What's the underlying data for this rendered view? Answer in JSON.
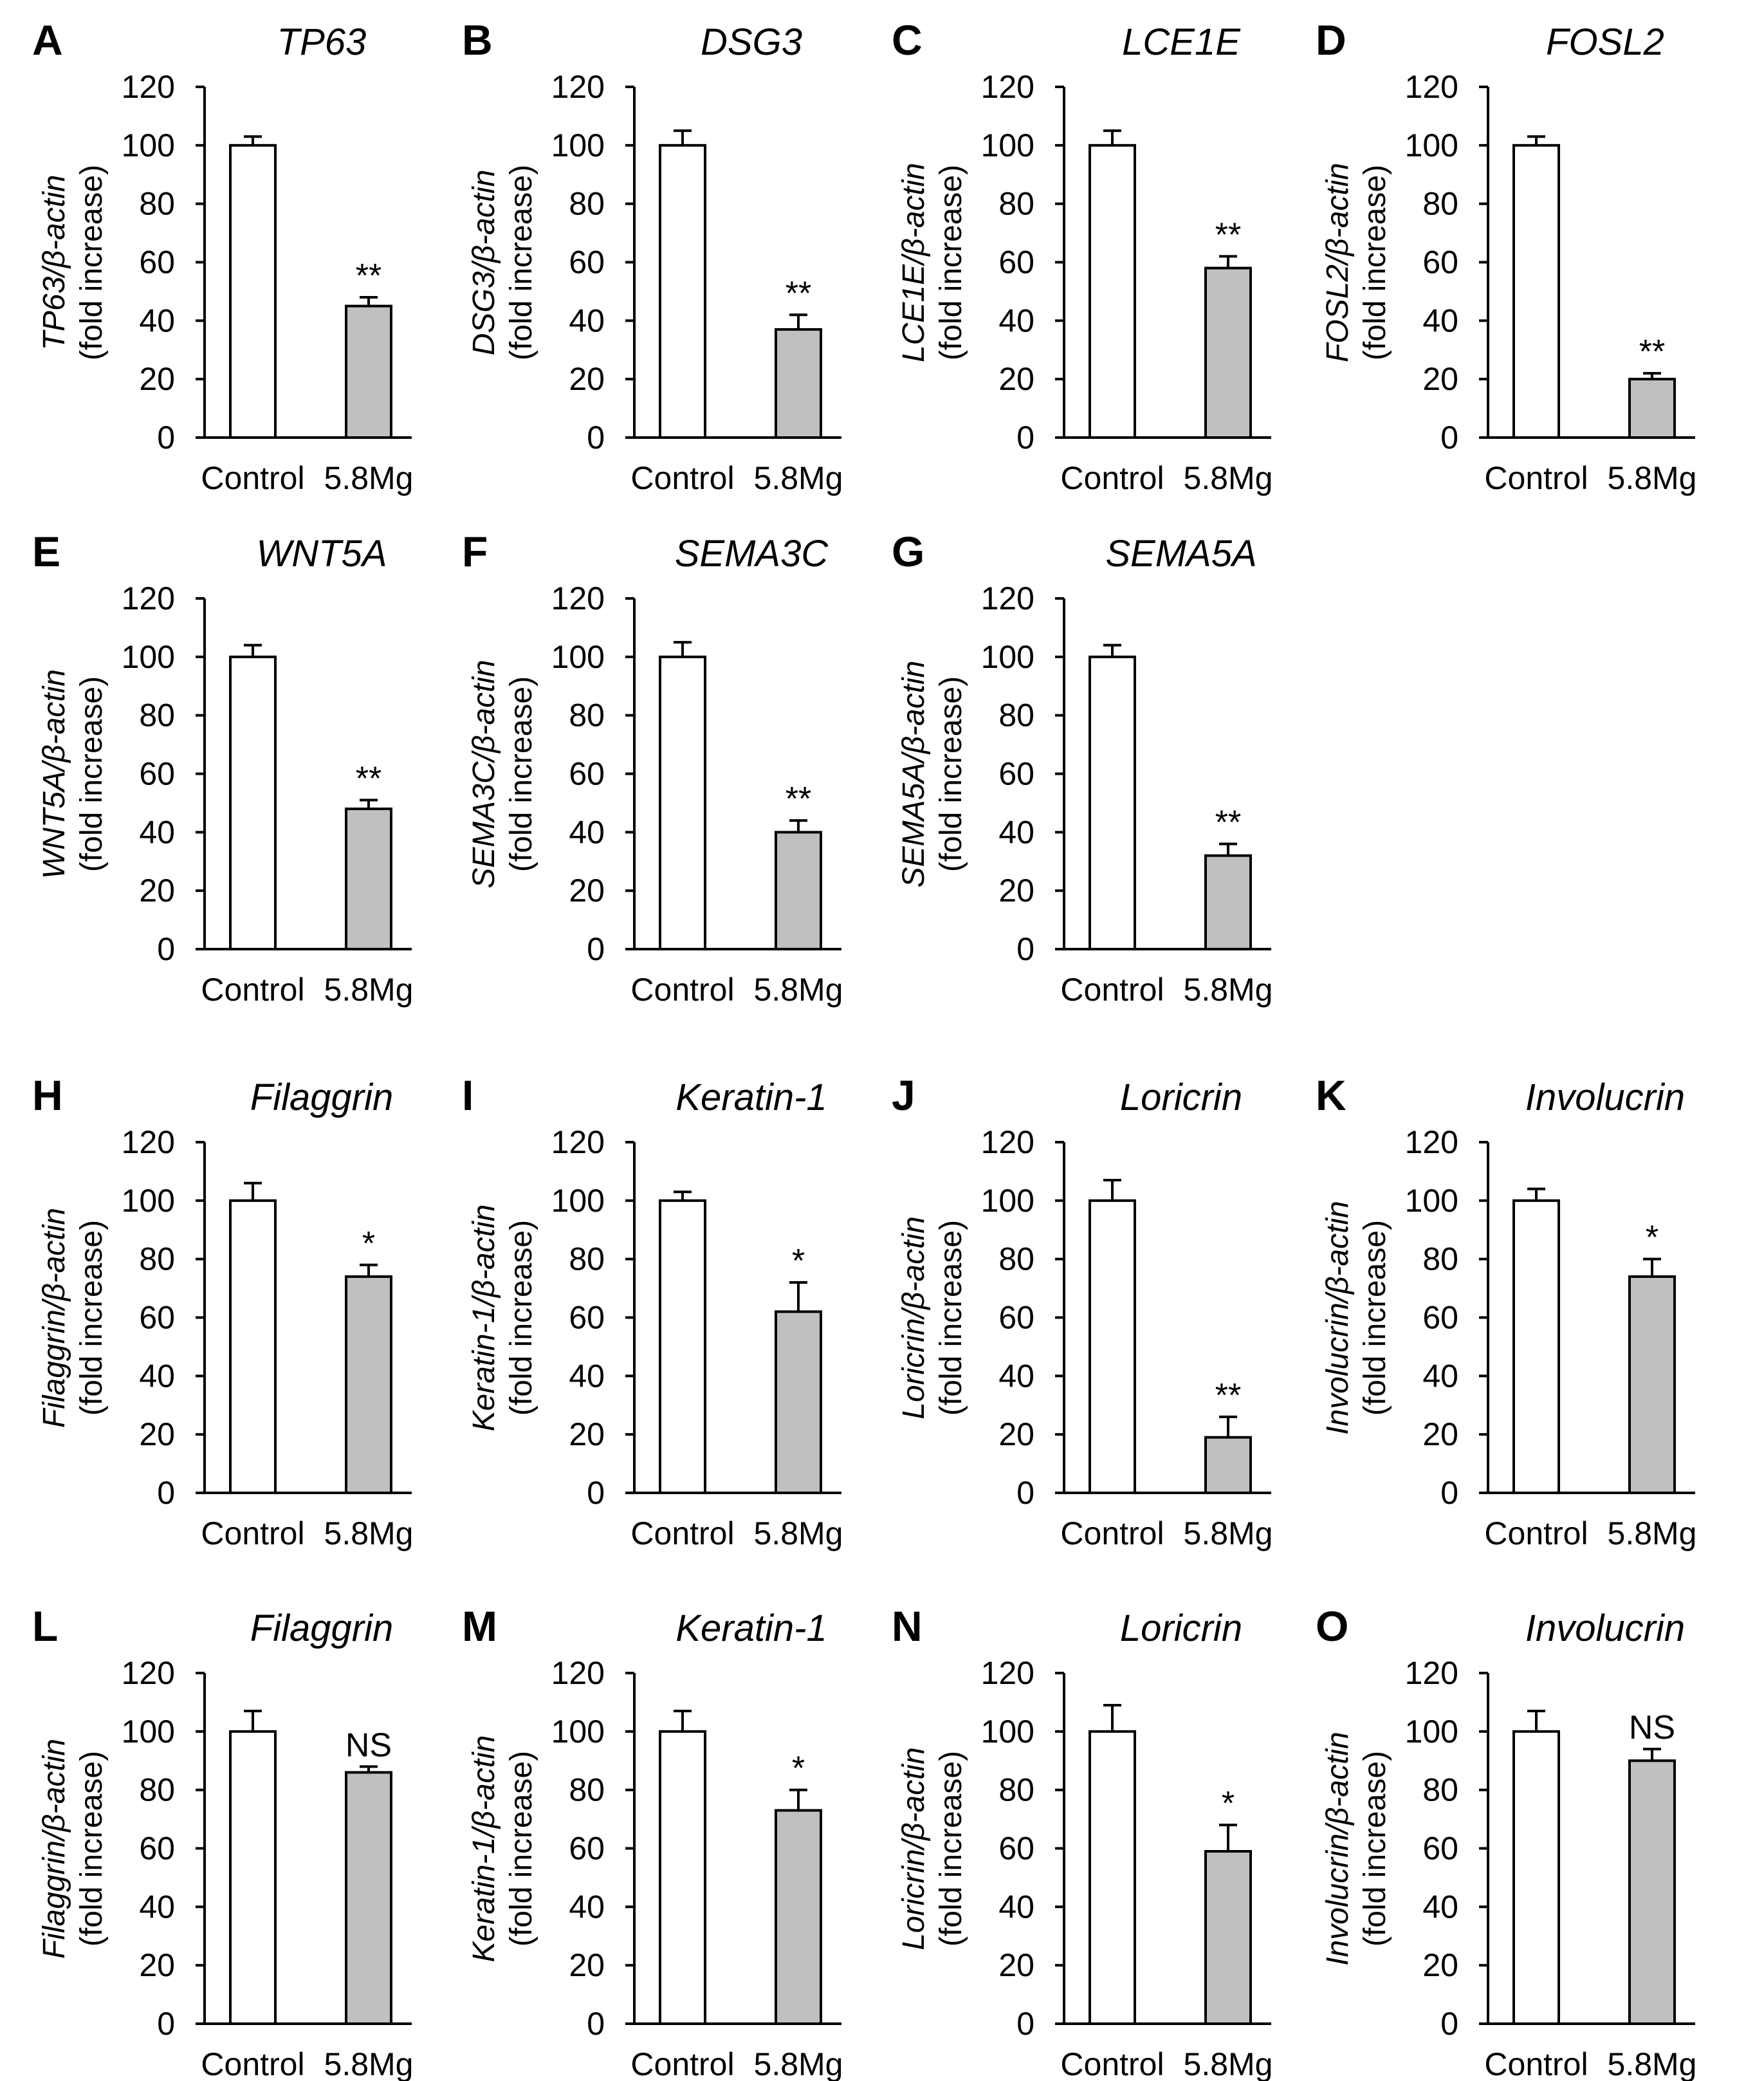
{
  "colors": {
    "control_fill": "#ffffff",
    "treated_fill": "#c0c0c0",
    "stroke": "#000000"
  },
  "chart_data": [
    {
      "panel": "A",
      "type": "bar",
      "title": "TP63",
      "ylabel_gene": "TP63/β-actin",
      "ylabel_unit": "(fold increase)",
      "categories": [
        "Control",
        "5.8Mg"
      ],
      "values": [
        100,
        45
      ],
      "errors": [
        3,
        3
      ],
      "significance": "**",
      "ylim": [
        0,
        120
      ],
      "yticks": [
        "0",
        "20",
        "40",
        "60",
        "80",
        "100",
        "120"
      ]
    },
    {
      "panel": "B",
      "type": "bar",
      "title": "DSG3",
      "ylabel_gene": "DSG3/β-actin",
      "ylabel_unit": "(fold increase)",
      "categories": [
        "Control",
        "5.8Mg"
      ],
      "values": [
        100,
        37
      ],
      "errors": [
        5,
        5
      ],
      "significance": "**",
      "ylim": [
        0,
        120
      ],
      "yticks": [
        "0",
        "20",
        "40",
        "60",
        "80",
        "100",
        "120"
      ]
    },
    {
      "panel": "C",
      "type": "bar",
      "title": "LCE1E",
      "ylabel_gene": "LCE1E/β-actin",
      "ylabel_unit": "(fold increase)",
      "categories": [
        "Control",
        "5.8Mg"
      ],
      "values": [
        100,
        58
      ],
      "errors": [
        5,
        4
      ],
      "significance": "**",
      "ylim": [
        0,
        120
      ],
      "yticks": [
        "0",
        "20",
        "40",
        "60",
        "80",
        "100",
        "120"
      ]
    },
    {
      "panel": "D",
      "type": "bar",
      "title": "FOSL2",
      "ylabel_gene": "FOSL2/β-actin",
      "ylabel_unit": "(fold increase)",
      "categories": [
        "Control",
        "5.8Mg"
      ],
      "values": [
        100,
        20
      ],
      "errors": [
        3,
        2
      ],
      "significance": "**",
      "ylim": [
        0,
        120
      ],
      "yticks": [
        "0",
        "20",
        "40",
        "60",
        "80",
        "100",
        "120"
      ]
    },
    {
      "panel": "E",
      "type": "bar",
      "title": "WNT5A",
      "ylabel_gene": "WNT5A/β-actin",
      "ylabel_unit": "(fold increase)",
      "categories": [
        "Control",
        "5.8Mg"
      ],
      "values": [
        100,
        48
      ],
      "errors": [
        4,
        3
      ],
      "significance": "**",
      "ylim": [
        0,
        120
      ],
      "yticks": [
        "0",
        "20",
        "40",
        "60",
        "80",
        "100",
        "120"
      ]
    },
    {
      "panel": "F",
      "type": "bar",
      "title": "SEMA3C",
      "ylabel_gene": "SEMA3C/β-actin",
      "ylabel_unit": "(fold increase)",
      "categories": [
        "Control",
        "5.8Mg"
      ],
      "values": [
        100,
        40
      ],
      "errors": [
        5,
        4
      ],
      "significance": "**",
      "ylim": [
        0,
        120
      ],
      "yticks": [
        "0",
        "20",
        "40",
        "60",
        "80",
        "100",
        "120"
      ]
    },
    {
      "panel": "G",
      "type": "bar",
      "title": "SEMA5A",
      "ylabel_gene": "SEMA5A/β-actin",
      "ylabel_unit": "(fold increase)",
      "categories": [
        "Control",
        "5.8Mg"
      ],
      "values": [
        100,
        32
      ],
      "errors": [
        4,
        4
      ],
      "significance": "**",
      "ylim": [
        0,
        120
      ],
      "yticks": [
        "0",
        "20",
        "40",
        "60",
        "80",
        "100",
        "120"
      ]
    },
    {
      "panel": "H",
      "type": "bar",
      "title": "Filaggrin",
      "ylabel_gene": "Filaggrin/β-actin",
      "ylabel_unit": "(fold increase)",
      "categories": [
        "Control",
        "5.8Mg"
      ],
      "values": [
        100,
        74
      ],
      "errors": [
        6,
        4
      ],
      "significance": "*",
      "ylim": [
        0,
        120
      ],
      "yticks": [
        "0",
        "20",
        "40",
        "60",
        "80",
        "100",
        "120"
      ]
    },
    {
      "panel": "I",
      "type": "bar",
      "title": "Keratin-1",
      "ylabel_gene": "Keratin-1/β-actin",
      "ylabel_unit": "(fold increase)",
      "categories": [
        "Control",
        "5.8Mg"
      ],
      "values": [
        100,
        62
      ],
      "errors": [
        3,
        10
      ],
      "significance": "*",
      "ylim": [
        0,
        120
      ],
      "yticks": [
        "0",
        "20",
        "40",
        "60",
        "80",
        "100",
        "120"
      ]
    },
    {
      "panel": "J",
      "type": "bar",
      "title": "Loricrin",
      "ylabel_gene": "Loricrin/β-actin",
      "ylabel_unit": "(fold increase)",
      "categories": [
        "Control",
        "5.8Mg"
      ],
      "values": [
        100,
        19
      ],
      "errors": [
        7,
        7
      ],
      "significance": "**",
      "ylim": [
        0,
        120
      ],
      "yticks": [
        "0",
        "20",
        "40",
        "60",
        "80",
        "100",
        "120"
      ]
    },
    {
      "panel": "K",
      "type": "bar",
      "title": "Involucrin",
      "ylabel_gene": "Involucrin/β-actin",
      "ylabel_unit": "(fold increase)",
      "categories": [
        "Control",
        "5.8Mg"
      ],
      "values": [
        100,
        74
      ],
      "errors": [
        4,
        6
      ],
      "significance": "*",
      "ylim": [
        0,
        120
      ],
      "yticks": [
        "0",
        "20",
        "40",
        "60",
        "80",
        "100",
        "120"
      ]
    },
    {
      "panel": "L",
      "type": "bar",
      "title": "Filaggrin",
      "ylabel_gene": "Filaggrin/β-actin",
      "ylabel_unit": "(fold increase)",
      "categories": [
        "Control",
        "5.8Mg"
      ],
      "values": [
        100,
        86
      ],
      "errors": [
        7,
        2
      ],
      "significance": "NS",
      "ylim": [
        0,
        120
      ],
      "yticks": [
        "0",
        "20",
        "40",
        "60",
        "80",
        "100",
        "120"
      ]
    },
    {
      "panel": "M",
      "type": "bar",
      "title": "Keratin-1",
      "ylabel_gene": "Keratin-1/β-actin",
      "ylabel_unit": "(fold increase)",
      "categories": [
        "Control",
        "5.8Mg"
      ],
      "values": [
        100,
        73
      ],
      "errors": [
        7,
        7
      ],
      "significance": "*",
      "ylim": [
        0,
        120
      ],
      "yticks": [
        "0",
        "20",
        "40",
        "60",
        "80",
        "100",
        "120"
      ]
    },
    {
      "panel": "N",
      "type": "bar",
      "title": "Loricrin",
      "ylabel_gene": "Loricrin/β-actin",
      "ylabel_unit": "(fold increase)",
      "categories": [
        "Control",
        "5.8Mg"
      ],
      "values": [
        100,
        59
      ],
      "errors": [
        9,
        9
      ],
      "significance": "*",
      "ylim": [
        0,
        120
      ],
      "yticks": [
        "0",
        "20",
        "40",
        "60",
        "80",
        "100",
        "120"
      ]
    },
    {
      "panel": "O",
      "type": "bar",
      "title": "Involucrin",
      "ylabel_gene": "Involucrin/β-actin",
      "ylabel_unit": "(fold increase)",
      "categories": [
        "Control",
        "5.8Mg"
      ],
      "values": [
        100,
        90
      ],
      "errors": [
        7,
        4
      ],
      "significance": "NS",
      "ylim": [
        0,
        120
      ],
      "yticks": [
        "0",
        "20",
        "40",
        "60",
        "80",
        "100",
        "120"
      ]
    }
  ]
}
